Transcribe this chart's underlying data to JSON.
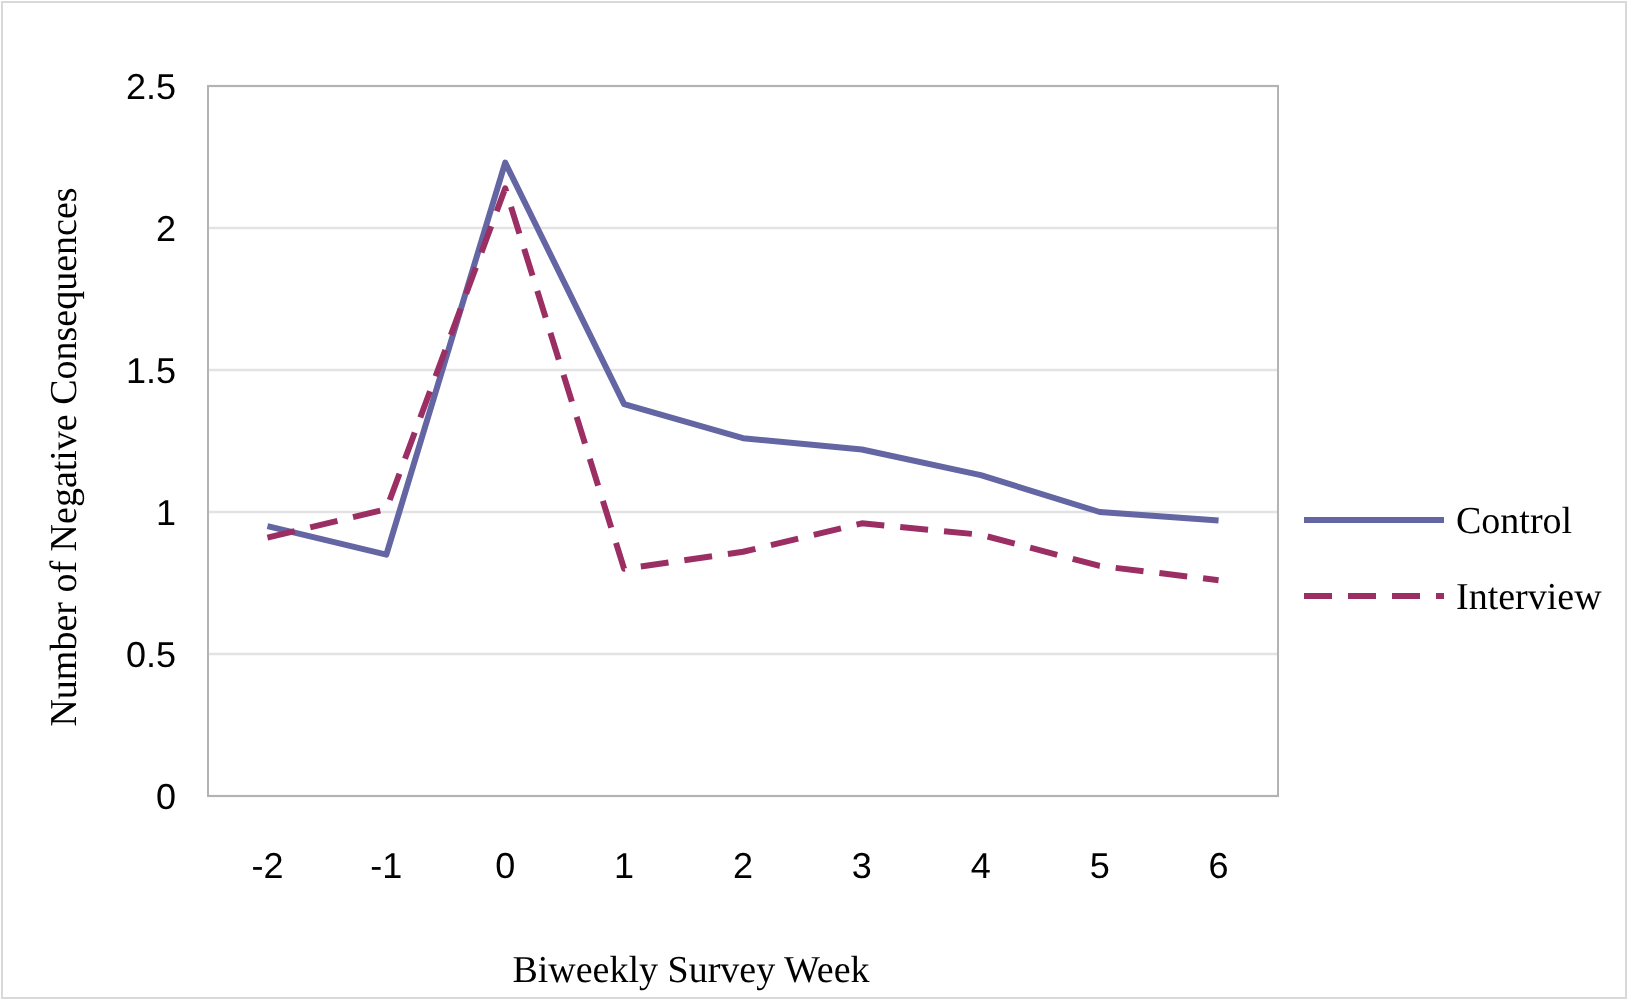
{
  "chart_data": {
    "type": "line",
    "xlabel": "Biweekly Survey Week",
    "ylabel": "Number of Negative Consequences",
    "categories": [
      "-2",
      "-1",
      "0",
      "1",
      "2",
      "3",
      "4",
      "5",
      "6"
    ],
    "series": [
      {
        "name": "Control",
        "color": "#6465a3",
        "line_style": "solid",
        "values": [
          0.95,
          0.85,
          2.23,
          1.38,
          1.26,
          1.22,
          1.13,
          1.0,
          0.97
        ]
      },
      {
        "name": "Interview",
        "color": "#9b2f64",
        "line_style": "dashed",
        "values": [
          0.91,
          1.01,
          2.14,
          0.8,
          0.86,
          0.96,
          0.92,
          0.81,
          0.76
        ]
      }
    ],
    "ylim": [
      0,
      2.5
    ],
    "yticks": [
      0,
      0.5,
      1,
      1.5,
      2,
      2.5
    ],
    "grid": "y",
    "legend": "right",
    "marker": "none"
  }
}
